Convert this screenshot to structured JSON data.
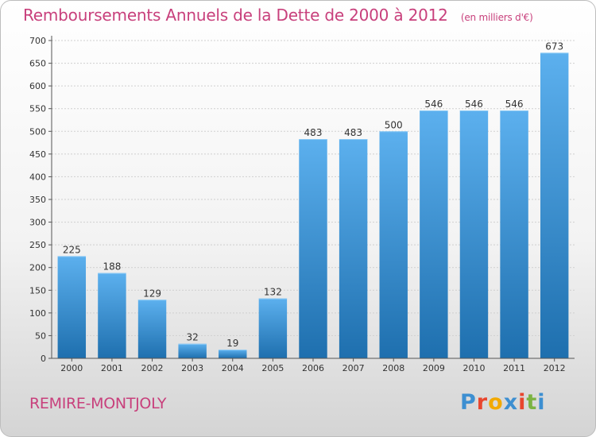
{
  "header": {
    "title": "Remboursements Annuels de la Dette de 2000 à 2012",
    "unit": "(en milliers d'€)"
  },
  "footer": {
    "commune": "REMIRE-MONTJOLY",
    "logo": [
      "P",
      "r",
      "o",
      "x",
      "i",
      "t",
      "i"
    ],
    "logo_colors": [
      "#3d8fd1",
      "#e8462e",
      "#f2a900",
      "#3d8fd1",
      "#e8462e",
      "#7cb342",
      "#3d8fd1"
    ]
  },
  "colors": {
    "bar_top": "#5cb0ee",
    "bar_bottom": "#1e6fae",
    "accent": "#c8407c",
    "text": "#333333"
  },
  "chart_data": {
    "type": "bar",
    "title": "Remboursements Annuels de la Dette de 2000 à 2012",
    "categories": [
      "2000",
      "2001",
      "2002",
      "2003",
      "2004",
      "2005",
      "2006",
      "2007",
      "2008",
      "2009",
      "2010",
      "2011",
      "2012"
    ],
    "values": [
      225,
      188,
      129,
      32,
      19,
      132,
      483,
      483,
      500,
      546,
      546,
      546,
      673
    ],
    "ylim": [
      0,
      700
    ],
    "yticks": [
      0,
      50,
      100,
      150,
      200,
      250,
      300,
      350,
      400,
      450,
      500,
      550,
      600,
      650,
      700
    ],
    "grid": true,
    "legend": "none"
  }
}
